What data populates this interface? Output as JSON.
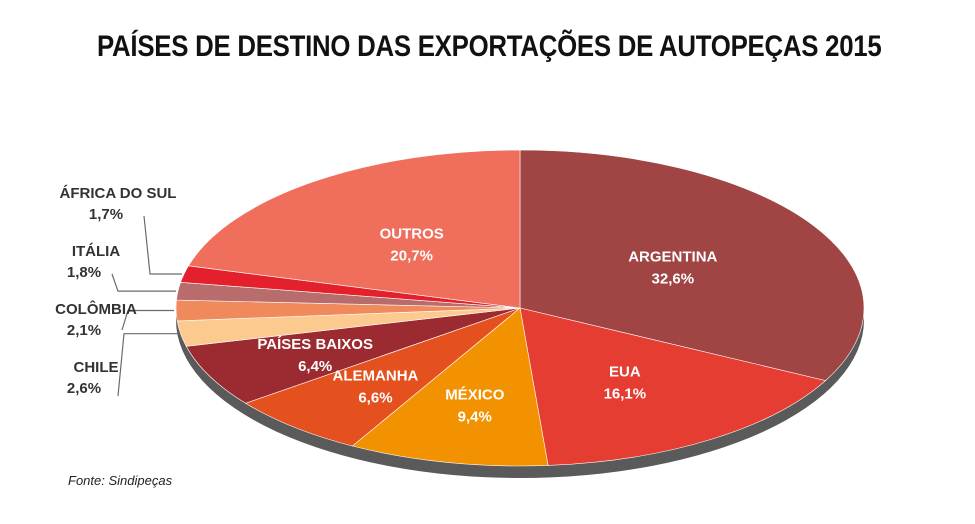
{
  "chart_data": {
    "type": "pie",
    "title": "PAÍSES DE DESTINO DAS EXPORTAÇÕES DE AUTOPEÇAS 2015",
    "slices": [
      {
        "label": "ARGENTINA",
        "value_text": "32,6%",
        "value": 32.6,
        "color": "#a04444"
      },
      {
        "label": "EUA",
        "value_text": "16,1%",
        "value": 16.1,
        "color": "#e63d32"
      },
      {
        "label": "MÉXICO",
        "value_text": "9,4%",
        "value": 9.4,
        "color": "#f39200"
      },
      {
        "label": "ALEMANHA",
        "value_text": "6,6%",
        "value": 6.6,
        "color": "#e5501f"
      },
      {
        "label": "PAÍSES BAIXOS",
        "value_text": "6,4%",
        "value": 6.4,
        "color": "#9c2b31"
      },
      {
        "label": "CHILE",
        "value_text": "2,6%",
        "value": 2.6,
        "color": "#fcc98e"
      },
      {
        "label": "COLÔMBIA",
        "value_text": "2,1%",
        "value": 2.1,
        "color": "#f0895c"
      },
      {
        "label": "ITÁLIA",
        "value_text": "1,8%",
        "value": 1.8,
        "color": "#b86c6c"
      },
      {
        "label": "ÁFRICA DO SUL",
        "value_text": "1,7%",
        "value": 1.7,
        "color": "#e3202b"
      },
      {
        "label": "OUTROS",
        "value_text": "20,7%",
        "value": 20.7,
        "color": "#ef6f5c"
      }
    ]
  },
  "source": "Fonte: Sindipeças"
}
